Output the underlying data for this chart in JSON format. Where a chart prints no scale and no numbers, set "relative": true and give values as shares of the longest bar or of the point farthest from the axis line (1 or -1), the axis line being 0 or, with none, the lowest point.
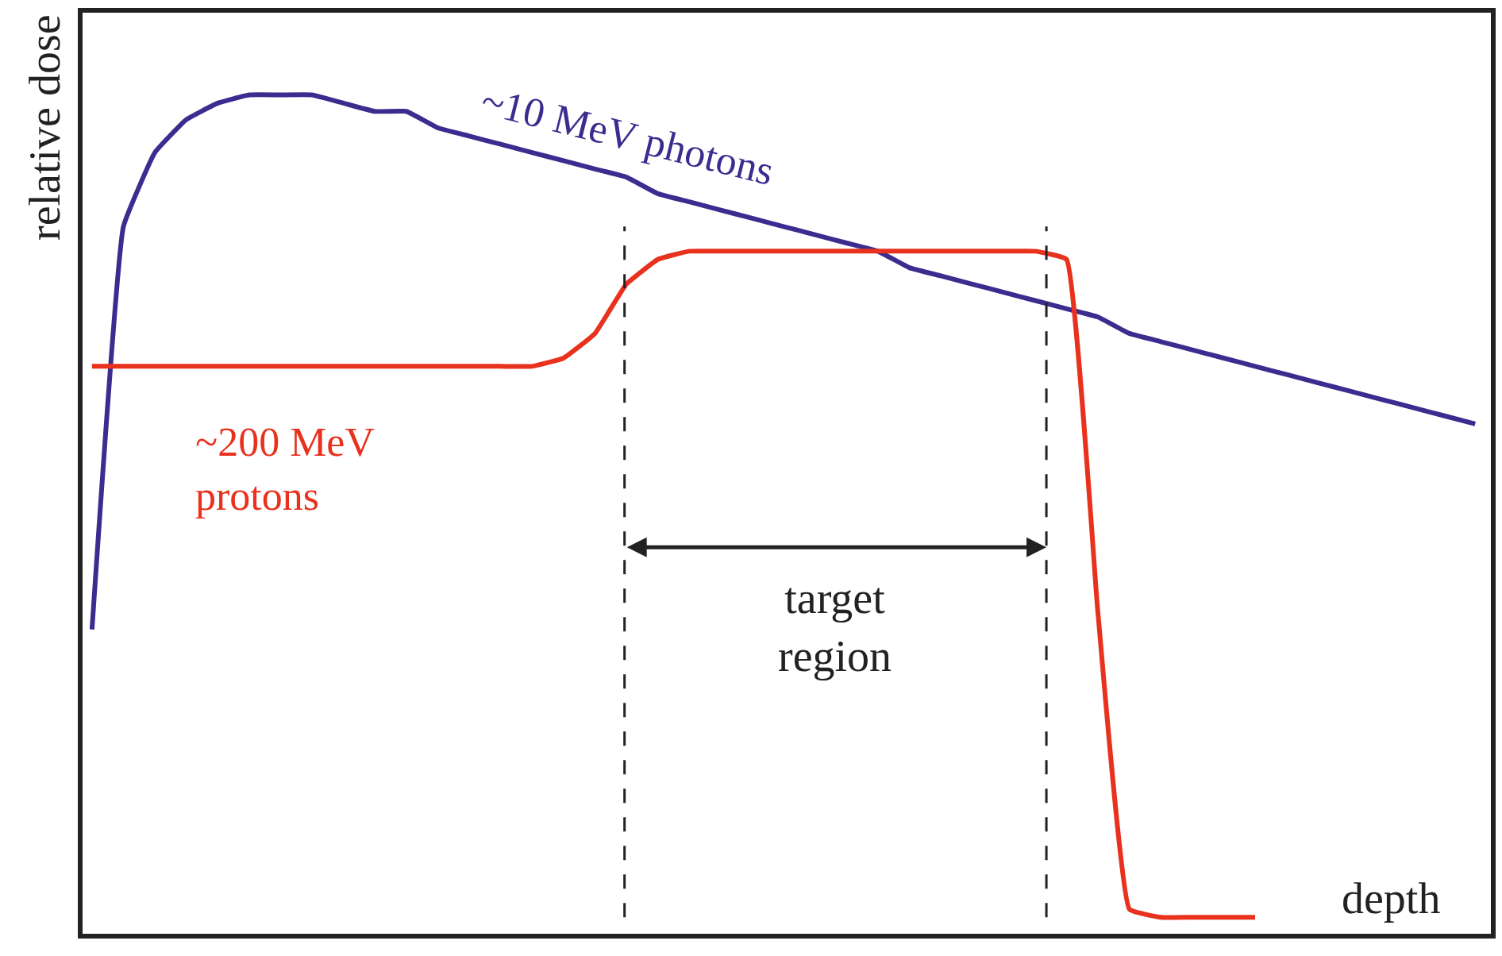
{
  "chart_data": {
    "type": "line",
    "relative": true,
    "xlabel": "depth",
    "ylabel": "relative dose",
    "categories": [
      null,
      null,
      null,
      null,
      null,
      null,
      null,
      null,
      null,
      null,
      null,
      null,
      null,
      null,
      null,
      null,
      null,
      null,
      null,
      null,
      null,
      null,
      null,
      null,
      null,
      null,
      null,
      null,
      null,
      null,
      null,
      null,
      null,
      null,
      null,
      null,
      null,
      null,
      null,
      null,
      null,
      null,
      null,
      null,
      null
    ],
    "series": [
      {
        "name": "~10 MeV photons",
        "color": "#3b2d8f",
        "values": [
          0.35,
          0.84,
          0.93,
          0.97,
          0.99,
          1.0,
          1.0,
          1.0,
          0.99,
          0.98,
          0.98,
          0.96,
          0.95,
          0.94,
          0.93,
          0.92,
          0.91,
          0.9,
          0.88,
          0.87,
          0.86,
          0.85,
          0.84,
          0.83,
          0.82,
          0.81,
          0.79,
          0.78,
          0.77,
          0.76,
          0.75,
          0.74,
          0.73,
          0.71,
          0.7,
          0.69,
          0.68,
          0.67,
          0.66,
          0.65,
          0.64,
          0.63,
          0.62,
          0.61,
          0.6
        ]
      },
      {
        "name": "~200 MeV protons",
        "color": "#e8321e",
        "values": [
          0.67,
          0.67,
          0.67,
          0.67,
          0.67,
          0.67,
          0.67,
          0.67,
          0.67,
          0.67,
          0.67,
          0.67,
          0.67,
          0.67,
          0.67,
          0.68,
          0.71,
          0.77,
          0.8,
          0.81,
          0.81,
          0.81,
          0.81,
          0.81,
          0.81,
          0.81,
          0.81,
          0.81,
          0.81,
          0.81,
          0.81,
          0.8,
          0.37,
          0.01,
          0.0,
          0.0,
          0.0,
          0.0,
          null,
          null,
          null,
          null,
          null,
          null,
          null
        ]
      }
    ],
    "annotations": [
      "target region"
    ],
    "legend": false,
    "line_style": "solid",
    "marker": "none"
  }
}
